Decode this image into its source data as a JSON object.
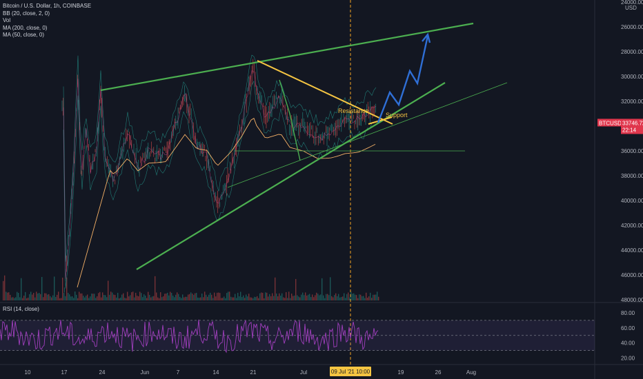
{
  "header": {
    "title": "Bitcoin / U.S. Dollar, 1h, COINBASE",
    "indicators": [
      "BB (20, close, 2, 0)",
      "Vol",
      "MA (200, close, 0)",
      "MA (50, close, 0)"
    ],
    "rsi_label": "RSI (14, close)"
  },
  "colors": {
    "background": "#131722",
    "green_trendline": "#4caf50",
    "yellow_trendline": "#f5c542",
    "projection": "#2f6fd6",
    "rsi_line": "#a23fbf",
    "price_tag": "#e0364c"
  },
  "chart_data": [
    {
      "type": "candlestick",
      "symbol": "BTCUSD",
      "yaxis": {
        "inverted": true,
        "range": [
          24000,
          48000
        ],
        "ticks": [
          "24000.00",
          "26000.00",
          "28000.00",
          "30000.00",
          "32000.00",
          "34000.00",
          "36000.00",
          "38000.00",
          "40000.00",
          "42000.00",
          "44000.00",
          "46000.00",
          "48000.00"
        ],
        "unit_label": "USD"
      },
      "xaxis": {
        "ticks": [
          "10",
          "17",
          "24",
          "Jun",
          "7",
          "14",
          "21",
          "Jul",
          "12",
          "19",
          "26",
          "Aug"
        ],
        "crosshair_label": "09 Jul '21   10:00"
      },
      "price_tag": {
        "symbol": "BTCUSD",
        "price": "33746.72",
        "countdown": "22:14"
      },
      "annotations": [
        "Resistance",
        "Support"
      ],
      "grid": false
    },
    {
      "type": "line",
      "name": "RSI (14, close)",
      "ylim": [
        15,
        90
      ],
      "yticks": [
        "80.00",
        "60.00",
        "40.00",
        "20.00"
      ],
      "bands": [
        70,
        50,
        30
      ]
    }
  ]
}
